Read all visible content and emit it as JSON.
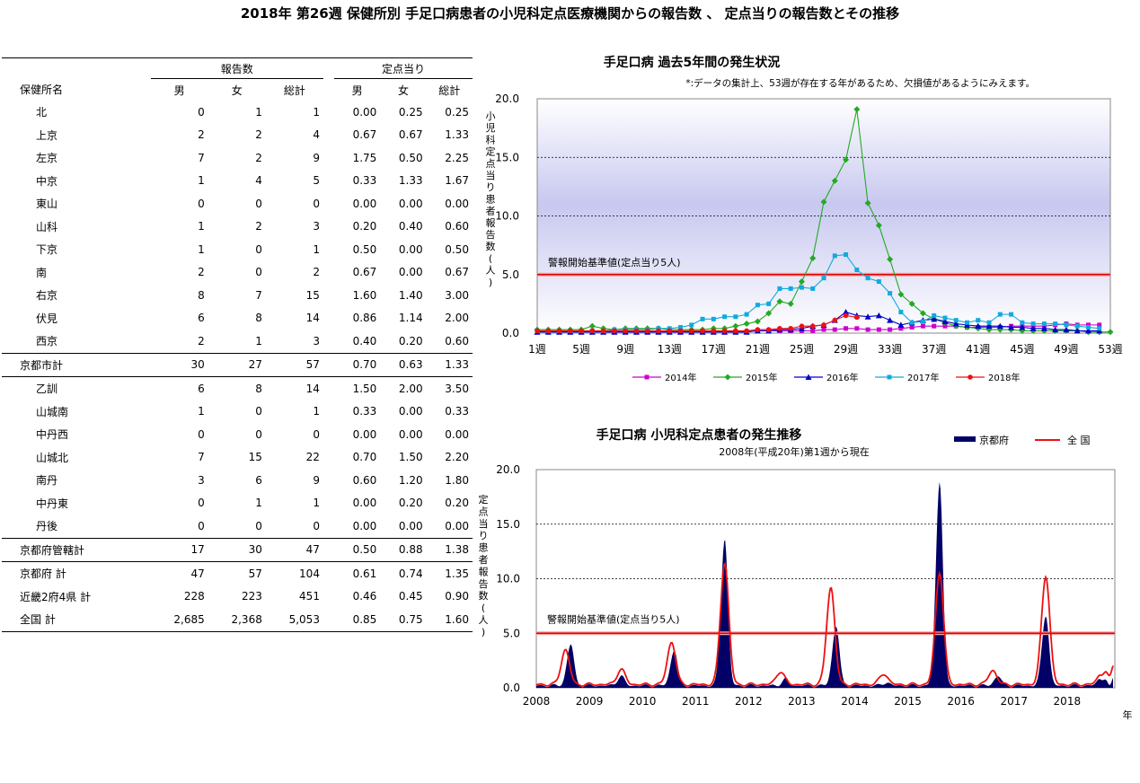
{
  "page_title": "2018年 第26週 保健所別 手足口病患者の小児科定点医療機関からの報告数 、 定点当りの報告数とその推移",
  "table": {
    "group_headers": {
      "reports": "報告数",
      "per_sentinel": "定点当り"
    },
    "column_headers": [
      "保健所名",
      "男",
      "女",
      "総計",
      "男",
      "女",
      "総計"
    ],
    "rows": [
      {
        "name": "北",
        "values": [
          "0",
          "1",
          "1",
          "0.00",
          "0.25",
          "0.25"
        ],
        "kind": "city"
      },
      {
        "name": "上京",
        "values": [
          "2",
          "2",
          "4",
          "0.67",
          "0.67",
          "1.33"
        ],
        "kind": "city"
      },
      {
        "name": "左京",
        "values": [
          "7",
          "2",
          "9",
          "1.75",
          "0.50",
          "2.25"
        ],
        "kind": "city"
      },
      {
        "name": "中京",
        "values": [
          "1",
          "4",
          "5",
          "0.33",
          "1.33",
          "1.67"
        ],
        "kind": "city"
      },
      {
        "name": "東山",
        "values": [
          "0",
          "0",
          "0",
          "0.00",
          "0.00",
          "0.00"
        ],
        "kind": "city"
      },
      {
        "name": "山科",
        "values": [
          "1",
          "2",
          "3",
          "0.20",
          "0.40",
          "0.60"
        ],
        "kind": "city"
      },
      {
        "name": "下京",
        "values": [
          "1",
          "0",
          "1",
          "0.50",
          "0.00",
          "0.50"
        ],
        "kind": "city"
      },
      {
        "name": "南",
        "values": [
          "2",
          "0",
          "2",
          "0.67",
          "0.00",
          "0.67"
        ],
        "kind": "city"
      },
      {
        "name": "右京",
        "values": [
          "8",
          "7",
          "15",
          "1.60",
          "1.40",
          "3.00"
        ],
        "kind": "city"
      },
      {
        "name": "伏見",
        "values": [
          "6",
          "8",
          "14",
          "0.86",
          "1.14",
          "2.00"
        ],
        "kind": "city"
      },
      {
        "name": "西京",
        "values": [
          "2",
          "1",
          "3",
          "0.40",
          "0.20",
          "0.60"
        ],
        "kind": "city-last"
      },
      {
        "name": "京都市計",
        "values": [
          "30",
          "27",
          "57",
          "0.70",
          "0.63",
          "1.33"
        ],
        "kind": "total"
      },
      {
        "name": "乙訓",
        "values": [
          "6",
          "8",
          "14",
          "1.50",
          "2.00",
          "3.50"
        ],
        "kind": "pref"
      },
      {
        "name": "山城南",
        "values": [
          "1",
          "0",
          "1",
          "0.33",
          "0.00",
          "0.33"
        ],
        "kind": "pref"
      },
      {
        "name": "中丹西",
        "values": [
          "0",
          "0",
          "0",
          "0.00",
          "0.00",
          "0.00"
        ],
        "kind": "pref"
      },
      {
        "name": "山城北",
        "values": [
          "7",
          "15",
          "22",
          "0.70",
          "1.50",
          "2.20"
        ],
        "kind": "pref"
      },
      {
        "name": "南丹",
        "values": [
          "3",
          "6",
          "9",
          "0.60",
          "1.20",
          "1.80"
        ],
        "kind": "pref"
      },
      {
        "name": "中丹東",
        "values": [
          "0",
          "1",
          "1",
          "0.00",
          "0.20",
          "0.20"
        ],
        "kind": "pref"
      },
      {
        "name": "丹後",
        "values": [
          "0",
          "0",
          "0",
          "0.00",
          "0.00",
          "0.00"
        ],
        "kind": "pref-last"
      },
      {
        "name": "京都府管轄計",
        "values": [
          "17",
          "30",
          "47",
          "0.50",
          "0.88",
          "1.38"
        ],
        "kind": "total"
      },
      {
        "name": "京都府 計",
        "values": [
          "47",
          "57",
          "104",
          "0.61",
          "0.74",
          "1.35"
        ],
        "kind": "summary"
      },
      {
        "name": "近畿2府4県 計",
        "values": [
          "228",
          "223",
          "451",
          "0.46",
          "0.45",
          "0.90"
        ],
        "kind": "summary"
      },
      {
        "name": "全国 計",
        "values": [
          "2,685",
          "2,368",
          "5,053",
          "0.85",
          "0.75",
          "1.60"
        ],
        "kind": "summary-last"
      }
    ]
  },
  "chart_data": [
    {
      "type": "line",
      "title": "手足口病 過去5年間の発生状況",
      "note": "*:データの集計上、53週が存在する年があるため、欠損値があるようにみえます。",
      "ylabel": "小児科定点当り患者報告数(人)",
      "ylim": [
        0,
        20
      ],
      "yticks": [
        "0.0",
        "5.0",
        "10.0",
        "15.0",
        "20.0"
      ],
      "xticks": [
        "1週",
        "5週",
        "9週",
        "13週",
        "17週",
        "21週",
        "25週",
        "29週",
        "33週",
        "37週",
        "41週",
        "45週",
        "49週",
        "53週"
      ],
      "threshold": {
        "label": "警報開始基準値(定点当り5人)",
        "value": 5
      },
      "legend_position": "bottom",
      "colors": {
        "2014年": "#cc00cc",
        "2015年": "#22aa22",
        "2016年": "#0000cc",
        "2017年": "#11aadd",
        "2018年": "#ee1111"
      },
      "series": [
        {
          "name": "2014年",
          "values": [
            0.1,
            0.1,
            0.1,
            0.1,
            0.1,
            0.1,
            0.1,
            0.1,
            0.1,
            0.1,
            0.1,
            0.1,
            0.1,
            0.1,
            0.1,
            0.1,
            0.1,
            0.1,
            0.1,
            0.1,
            0.2,
            0.2,
            0.2,
            0.2,
            0.2,
            0.2,
            0.3,
            0.3,
            0.4,
            0.4,
            0.3,
            0.3,
            0.3,
            0.4,
            0.5,
            0.6,
            0.6,
            0.6,
            0.6,
            0.5,
            0.5,
            0.5,
            0.5,
            0.6,
            0.6,
            0.6,
            0.6,
            0.7,
            0.8,
            0.7,
            0.7,
            0.7
          ]
        },
        {
          "name": "2015年",
          "values": [
            0.3,
            0.3,
            0.3,
            0.3,
            0.3,
            0.6,
            0.4,
            0.3,
            0.4,
            0.4,
            0.4,
            0.4,
            0.3,
            0.3,
            0.3,
            0.3,
            0.4,
            0.4,
            0.6,
            0.8,
            1.0,
            1.7,
            2.7,
            2.5,
            4.4,
            6.4,
            11.2,
            13.0,
            14.8,
            19.1,
            11.1,
            9.2,
            6.3,
            3.3,
            2.5,
            1.7,
            1.2,
            0.9,
            0.6,
            0.5,
            0.4,
            0.3,
            0.3,
            0.3,
            0.2,
            0.2,
            0.2,
            0.2,
            0.2,
            0.2,
            0.1,
            0.1,
            0.1
          ]
        },
        {
          "name": "2016年",
          "values": [
            0.1,
            0.1,
            0.1,
            0.1,
            0.1,
            0.1,
            0.1,
            0.1,
            0.1,
            0.1,
            0.1,
            0.1,
            0.1,
            0.1,
            0.1,
            0.1,
            0.1,
            0.1,
            0.1,
            0.1,
            0.2,
            0.2,
            0.3,
            0.3,
            0.4,
            0.6,
            0.7,
            1.1,
            1.8,
            1.5,
            1.4,
            1.5,
            1.1,
            0.7,
            0.9,
            1.1,
            1.2,
            1.0,
            0.8,
            0.7,
            0.6,
            0.6,
            0.6,
            0.5,
            0.5,
            0.4,
            0.4,
            0.3,
            0.3,
            0.2,
            0.2,
            0.2
          ]
        },
        {
          "name": "2017年",
          "values": [
            0.2,
            0.2,
            0.2,
            0.2,
            0.2,
            0.2,
            0.2,
            0.3,
            0.3,
            0.3,
            0.3,
            0.4,
            0.4,
            0.5,
            0.7,
            1.2,
            1.2,
            1.4,
            1.4,
            1.6,
            2.4,
            2.5,
            3.8,
            3.8,
            3.9,
            3.8,
            4.7,
            6.6,
            6.7,
            5.4,
            4.7,
            4.4,
            3.4,
            1.8,
            0.9,
            1.0,
            1.5,
            1.3,
            1.1,
            0.9,
            1.1,
            0.9,
            1.6,
            1.6,
            0.9,
            0.8,
            0.8,
            0.8,
            0.7,
            0.6,
            0.5,
            0.4
          ]
        },
        {
          "name": "2018年",
          "values": [
            0.2,
            0.2,
            0.2,
            0.2,
            0.2,
            0.2,
            0.2,
            0.2,
            0.2,
            0.2,
            0.2,
            0.2,
            0.2,
            0.2,
            0.2,
            0.2,
            0.2,
            0.2,
            0.2,
            0.2,
            0.3,
            0.3,
            0.4,
            0.4,
            0.6,
            0.6,
            0.7,
            1.1,
            1.5,
            1.35
          ]
        }
      ]
    },
    {
      "type": "area",
      "title": "手足口病 小児科定点患者の発生推移",
      "subtitle": "2008年(平成20年)第1週から現在",
      "ylabel": "定点当り患者報告数(人)",
      "xlabel": "年",
      "ylim": [
        0,
        20
      ],
      "yticks": [
        "0.0",
        "5.0",
        "10.0",
        "15.0",
        "20.0"
      ],
      "xticks": [
        "2008",
        "2009",
        "2010",
        "2011",
        "2012",
        "2013",
        "2014",
        "2015",
        "2016",
        "2017",
        "2018"
      ],
      "threshold": {
        "label": "警報開始基準値(定点当り5人)",
        "value": 5
      },
      "legend_position": "top-right",
      "colors": {
        "京都府": "#000066",
        "全 国": "#ee1111"
      },
      "series": [
        {
          "name": "京都府",
          "peaks": [
            [
              0.65,
              3.8
            ],
            [
              1.6,
              0.9
            ],
            [
              2.6,
              3.3
            ],
            [
              3.55,
              13.5
            ],
            [
              4.7,
              0.6
            ],
            [
              5.65,
              5.5
            ],
            [
              6.6,
              0.3
            ],
            [
              7.6,
              18.8
            ],
            [
              8.7,
              0.9
            ],
            [
              9.6,
              6.5
            ],
            [
              10.65,
              0.8
            ]
          ],
          "baseline": 0.2,
          "end": 10.87,
          "end_value": 0.6
        },
        {
          "name": "全 国",
          "peaks": [
            [
              0.55,
              3.2
            ],
            [
              1.6,
              1.4
            ],
            [
              2.55,
              3.9
            ],
            [
              3.55,
              11.2
            ],
            [
              4.6,
              1.2
            ],
            [
              5.55,
              8.9
            ],
            [
              6.55,
              1.0
            ],
            [
              7.6,
              10.3
            ],
            [
              8.6,
              1.3
            ],
            [
              9.6,
              10.0
            ],
            [
              10.65,
              0.9
            ]
          ],
          "baseline": 0.3,
          "end": 10.87,
          "end_value": 1.7
        }
      ]
    }
  ]
}
